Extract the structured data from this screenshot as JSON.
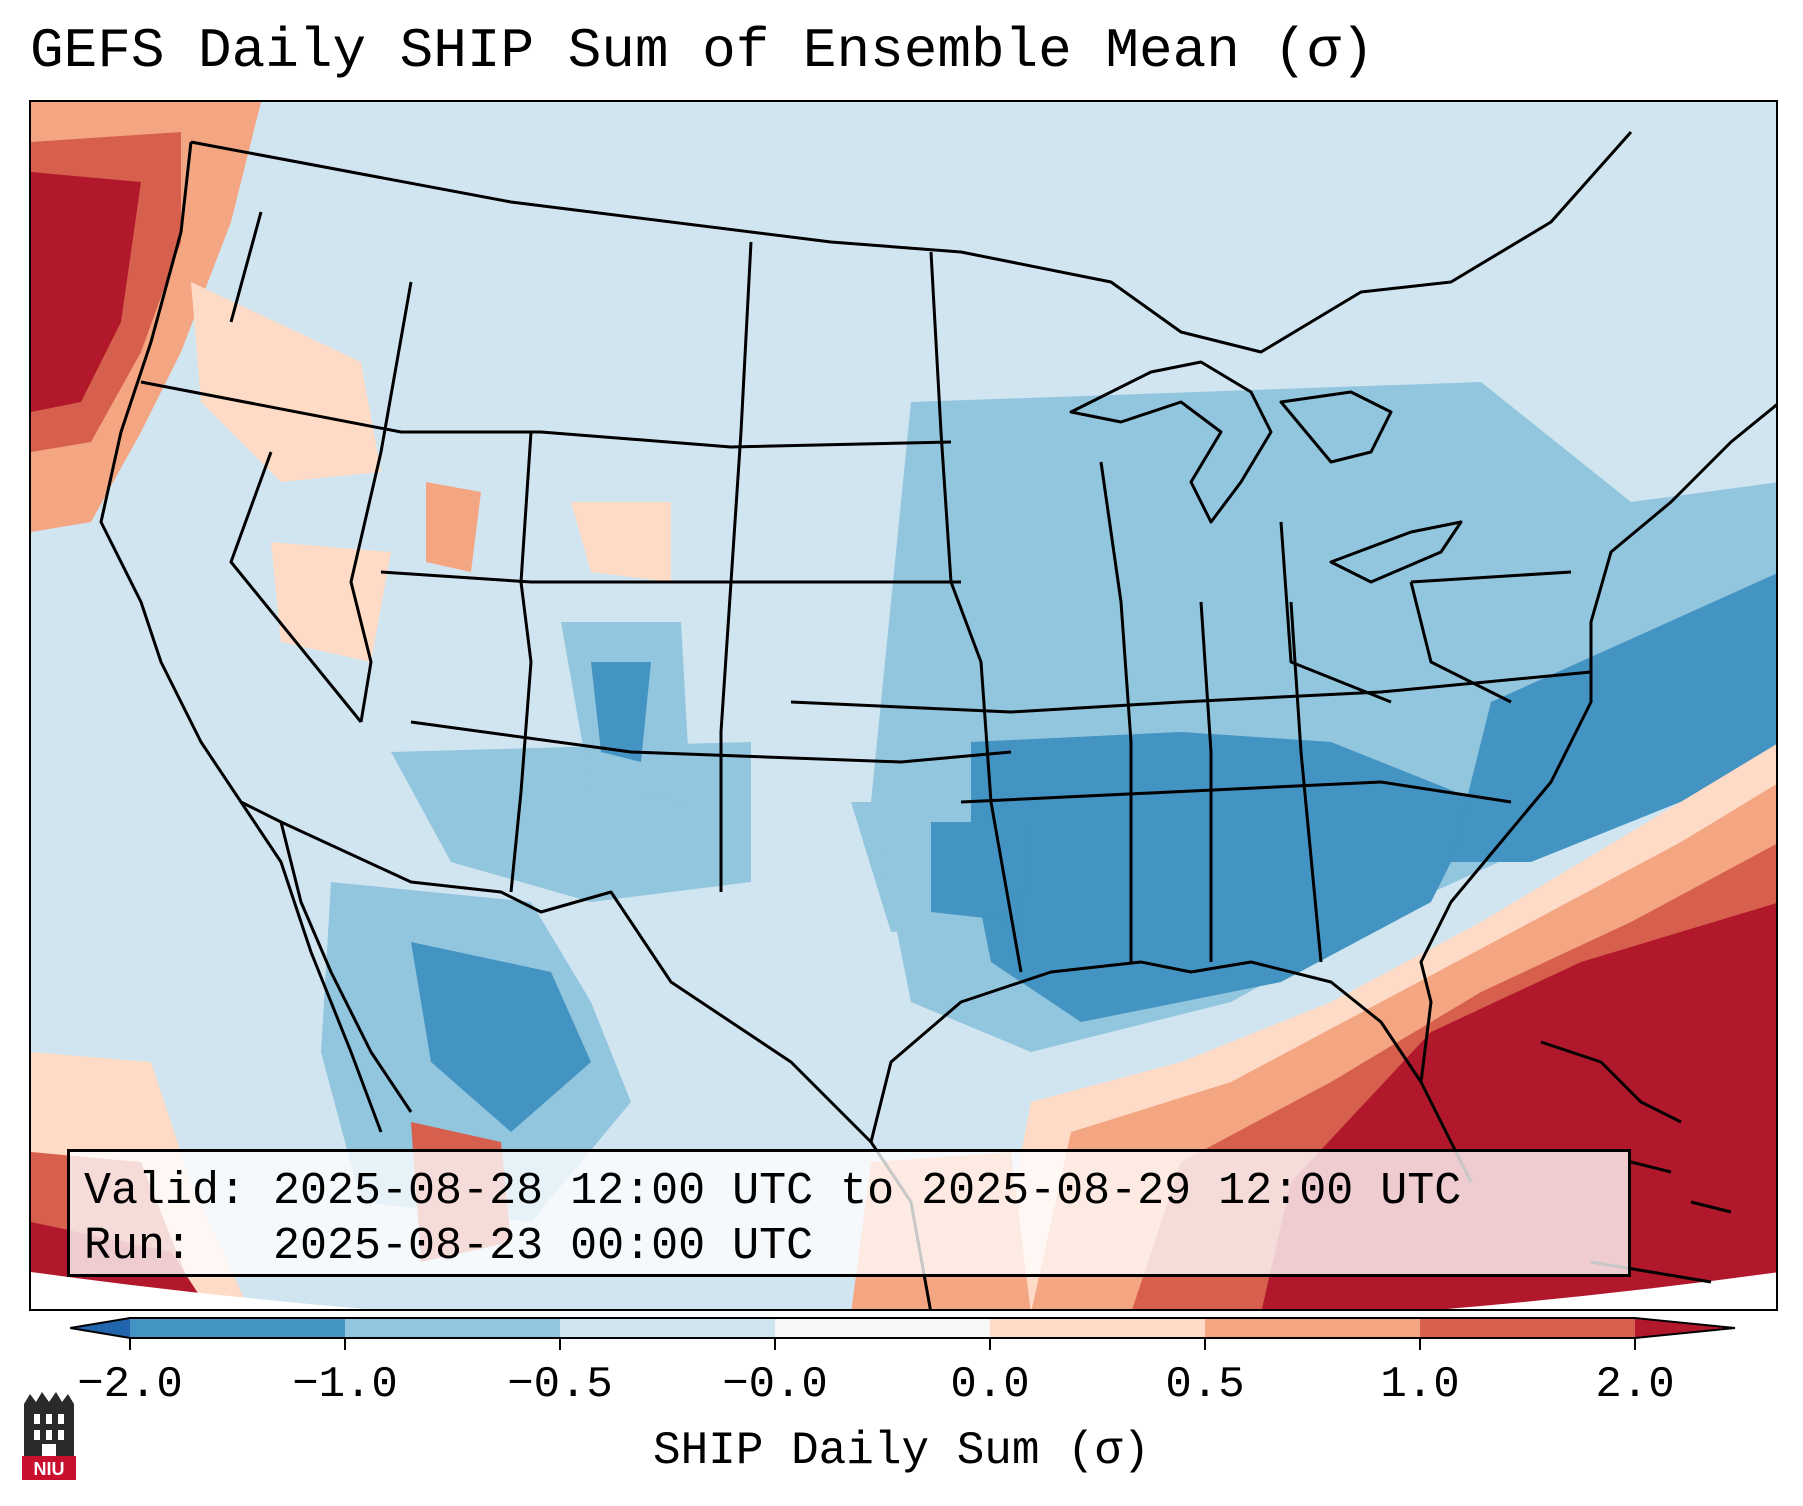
{
  "title": "GEFS Daily SHIP Sum of Ensemble Mean (σ)",
  "info": {
    "valid_line": "Valid: 2025-08-28 12:00 UTC to 2025-08-29 12:00 UTC",
    "run_line": "Run:   2025-08-23 00:00 UTC"
  },
  "colorbar": {
    "label": "SHIP Daily Sum (σ)",
    "tick_labels": [
      "−2.0",
      "−1.0",
      "−0.5",
      "−0.0",
      "0.0",
      "0.5",
      "1.0",
      "2.0"
    ],
    "colors": [
      "#4393c3",
      "#92c5de",
      "#d1e5f0",
      "#f7f7f7",
      "#fddbc7",
      "#f4a582",
      "#d6604d",
      "#b2182b"
    ],
    "extend_colors": {
      "low": "#2166ac",
      "high": "#b2182b"
    }
  },
  "logo": {
    "text": "NIU",
    "color": "#c8102e"
  }
}
